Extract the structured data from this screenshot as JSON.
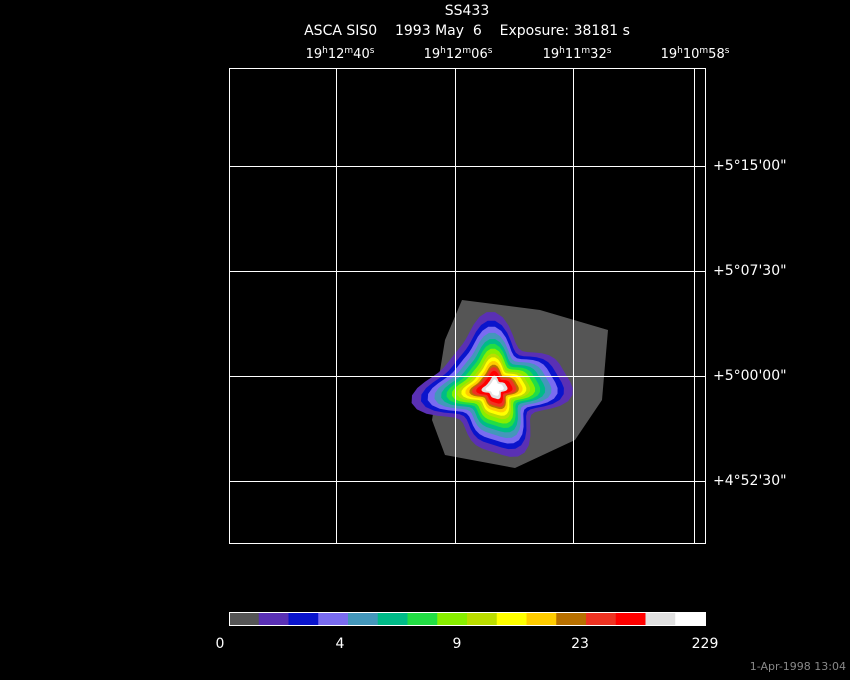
{
  "header": {
    "title": "SS433",
    "subtitle": "ASCA SIS0    1993 May  6    Exposure: 38181 s"
  },
  "ra_labels": [
    [
      "19",
      "h",
      "12",
      "m",
      "40",
      "s"
    ],
    [
      "19",
      "h",
      "12",
      "m",
      "06",
      "s"
    ],
    [
      "19",
      "h",
      "11",
      "m",
      "32",
      "s"
    ],
    [
      "19",
      "h",
      "10",
      "m",
      "58",
      "s"
    ]
  ],
  "dec_labels": [
    "+5°15'00\"",
    "+5°07'30\"",
    "+5°00'00\"",
    "+4°52'30\""
  ],
  "colorbar": {
    "colors": [
      "#555555",
      "#5a30b4",
      "#0a14cc",
      "#7a6cf0",
      "#4497bb",
      "#00bb88",
      "#22dd44",
      "#88ee00",
      "#bbdd00",
      "#ffff00",
      "#ffcc00",
      "#b87000",
      "#ee3322",
      "#ff0000",
      "#e0e0e0",
      "#ffffff"
    ],
    "ticks": [
      0,
      4,
      9,
      23,
      229
    ]
  },
  "footer": {
    "timestamp": "1-Apr-1998 13:04"
  }
}
